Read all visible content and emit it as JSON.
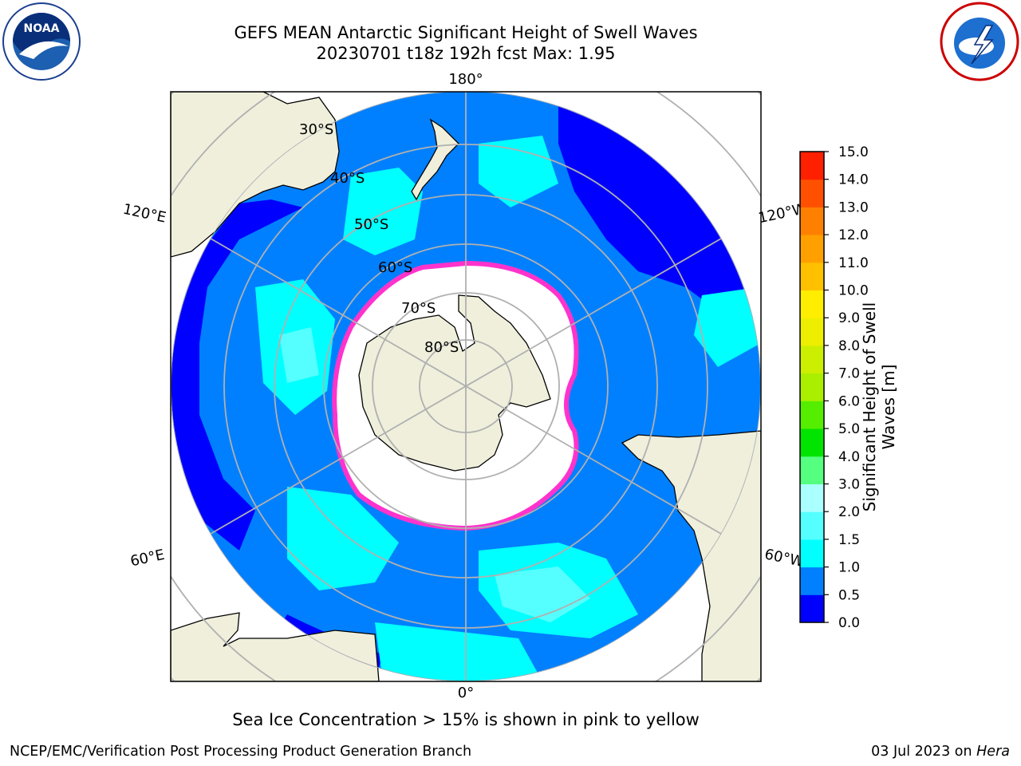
{
  "title": {
    "line1": "GEFS MEAN Antarctic Significant Height of Swell Waves",
    "line2": "20230701 t18z 192h fcst   Max: 1.95"
  },
  "logos": {
    "left": "noaa-logo",
    "right": "national-weather-service-logo"
  },
  "map": {
    "projection": "south-polar-stereographic",
    "lon_labels": [
      "180°",
      "120°E",
      "120°W",
      "60°E",
      "60°W",
      "0°"
    ],
    "lat_labels": [
      "30°S",
      "40°S",
      "50°S",
      "60°S",
      "70°S",
      "80°S"
    ],
    "colors": {
      "ocean_low": "#0000ff",
      "ocean_mid": "#0080ff",
      "ocean_high": "#00ffff",
      "ocean_higher": "#55ffff",
      "land": "#efefdc",
      "ice": "#ffffff",
      "ice_edge": "#ff33cc",
      "graticule": "#b0b0b0"
    }
  },
  "colorbar": {
    "label_line1": "Significant Height of Swell",
    "label_line2": "Waves [m]",
    "ticks": [
      "0.0",
      "0.5",
      "1.0",
      "1.5",
      "2.0",
      "3.0",
      "4.0",
      "5.0",
      "6.0",
      "7.0",
      "8.0",
      "9.0",
      "10.0",
      "11.0",
      "12.0",
      "13.0",
      "14.0",
      "15.0"
    ],
    "colors": [
      "#0000ff",
      "#0080ff",
      "#00ffff",
      "#55ffff",
      "#aaffff",
      "#55ff80",
      "#00e400",
      "#55ee00",
      "#aaee00",
      "#ccee00",
      "#eeee00",
      "#ffee00",
      "#ffc000",
      "#ffa000",
      "#ff8000",
      "#ff5000",
      "#ff2000"
    ]
  },
  "footer": {
    "note": "Sea Ice Concentration > 15% is shown in pink to yellow",
    "credit": "NCEP/EMC/Verification Post Processing Product Generation Branch",
    "date": "03 Jul 2023 on",
    "machine": "Hera"
  }
}
